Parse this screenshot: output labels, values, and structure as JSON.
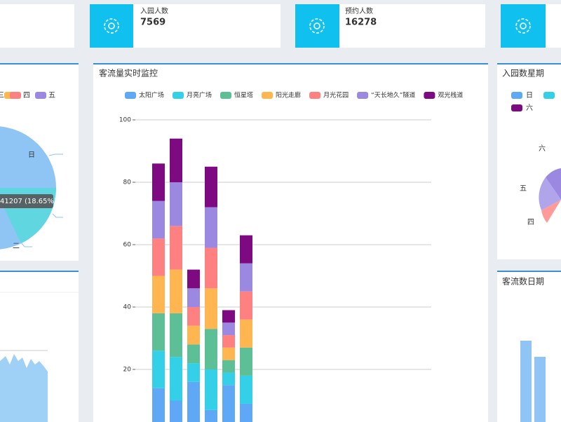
{
  "cards": [
    {
      "label": "入园人数",
      "value": "7569"
    },
    {
      "label": "预约人数",
      "value": "16278"
    }
  ],
  "left_panel": {
    "legend": [
      "三",
      "四",
      "五"
    ],
    "labels": [
      "日",
      "二"
    ],
    "tooltip": "41207 (18.65%)"
  },
  "chart_data": {
    "type": "bar",
    "stacked": true,
    "title": "客流量实时监控",
    "categories": [
      null,
      null,
      null,
      null,
      null,
      null
    ],
    "series": [
      {
        "name": "太阳广场",
        "color": "#5fa8f5",
        "values": [
          14,
          10,
          16,
          7,
          15,
          9
        ]
      },
      {
        "name": "月亮广场",
        "color": "#33d0e8",
        "values": [
          12,
          14,
          6,
          13,
          4,
          9
        ]
      },
      {
        "name": "恒星塔",
        "color": "#5cbf96",
        "values": [
          12,
          14,
          6,
          13,
          4,
          9
        ]
      },
      {
        "name": "阳光走廊",
        "color": "#ffb550",
        "values": [
          12,
          14,
          6,
          13,
          4,
          9
        ]
      },
      {
        "name": "月光花园",
        "color": "#ff8080",
        "values": [
          12,
          14,
          6,
          13,
          4,
          9
        ]
      },
      {
        "name": "“天长地久”隧道",
        "color": "#9b88e0",
        "values": [
          12,
          14,
          6,
          13,
          4,
          9
        ]
      },
      {
        "name": "观光栈道",
        "color": "#7e0a82",
        "values": [
          12,
          14,
          6,
          13,
          4,
          9
        ]
      }
    ],
    "ylim": [
      0,
      100
    ],
    "yticks": [
      20,
      40,
      60,
      80,
      100
    ],
    "grid": true
  },
  "right_panel": {
    "title": "入园数星期",
    "legend": [
      "日",
      "六"
    ],
    "labels": [
      "六",
      "五",
      "四"
    ]
  },
  "right_bottom": {
    "title": "客流数日期"
  }
}
